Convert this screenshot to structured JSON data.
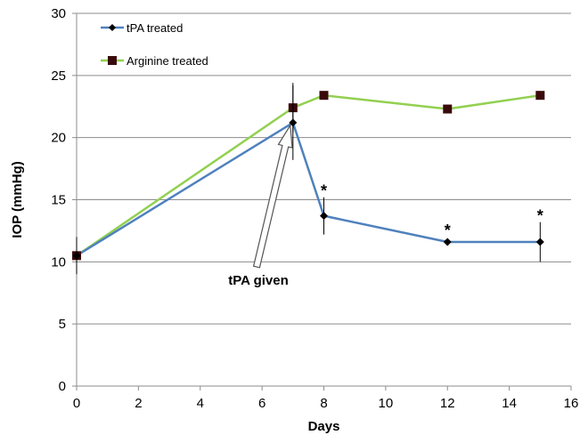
{
  "chart_data": {
    "type": "line",
    "xlabel": "Days",
    "ylabel": "IOP (mmHg)",
    "xlim": [
      0,
      16
    ],
    "ylim": [
      0,
      30
    ],
    "x_ticks": [
      "0",
      "2",
      "4",
      "6",
      "8",
      "10",
      "12",
      "14",
      "16"
    ],
    "y_ticks": [
      "0",
      "5",
      "10",
      "15",
      "20",
      "25",
      "30"
    ],
    "grid": "horizontal",
    "legend_position": "top-left",
    "series": [
      {
        "name": "tPA treated",
        "color": "#4f81bd",
        "marker": "diamond",
        "marker_color": "#000000",
        "x": [
          0,
          7,
          8,
          12,
          15
        ],
        "y": [
          10.5,
          21.2,
          13.7,
          11.6,
          11.6
        ],
        "error": [
          1.5,
          3.0,
          1.5,
          null,
          1.6
        ],
        "significance": [
          "",
          "",
          "*",
          "*",
          "*"
        ]
      },
      {
        "name": "Arginine treated",
        "color": "#92d050",
        "marker": "square",
        "marker_color": "#3a0a0a",
        "x": [
          0,
          7,
          8,
          12,
          15
        ],
        "y": [
          10.5,
          22.4,
          23.4,
          22.3,
          23.4
        ],
        "error": [
          null,
          2.0,
          null,
          null,
          null
        ],
        "significance": [
          "",
          "",
          "",
          "",
          ""
        ]
      }
    ],
    "annotations": [
      {
        "text": "tPA given",
        "arrow_to_x": 7,
        "arrow_to_y": 21.2
      }
    ]
  }
}
